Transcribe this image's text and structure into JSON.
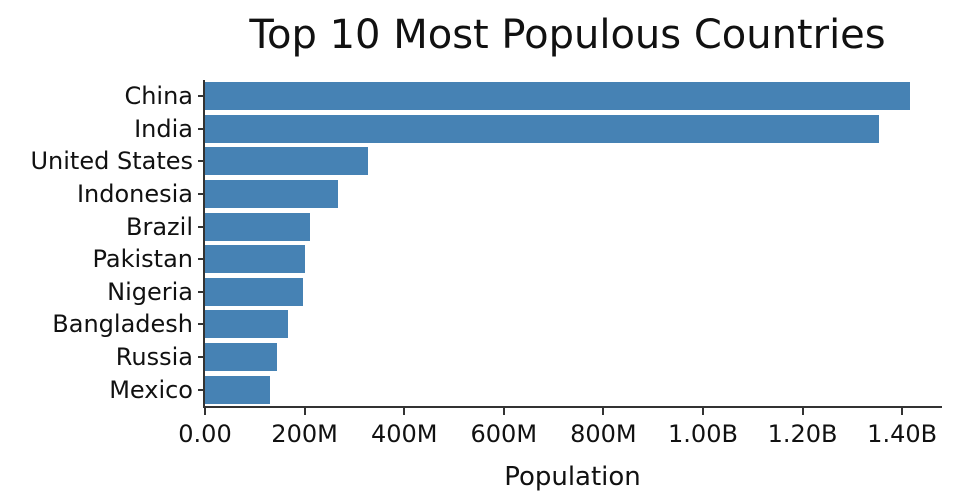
{
  "chart_data": {
    "type": "bar",
    "orientation": "horizontal",
    "title": "Top 10 Most Populous Countries",
    "xlabel": "Population",
    "ylabel": "",
    "categories": [
      "China",
      "India",
      "United States",
      "Indonesia",
      "Brazil",
      "Pakistan",
      "Nigeria",
      "Bangladesh",
      "Russia",
      "Mexico"
    ],
    "values_millions": [
      1415,
      1354,
      327,
      267,
      211,
      201,
      196,
      166,
      144,
      131
    ],
    "x_ticks": [
      {
        "label": "0.00",
        "value_millions": 0
      },
      {
        "label": "200M",
        "value_millions": 200
      },
      {
        "label": "400M",
        "value_millions": 400
      },
      {
        "label": "600M",
        "value_millions": 600
      },
      {
        "label": "800M",
        "value_millions": 800
      },
      {
        "label": "1.00B",
        "value_millions": 1000
      },
      {
        "label": "1.20B",
        "value_millions": 1200
      },
      {
        "label": "1.40B",
        "value_millions": 1400
      }
    ],
    "xlim_millions": [
      0,
      1480
    ],
    "bar_color": "#4682b4",
    "axis_color": "#333333",
    "grid": false,
    "legend": false
  }
}
